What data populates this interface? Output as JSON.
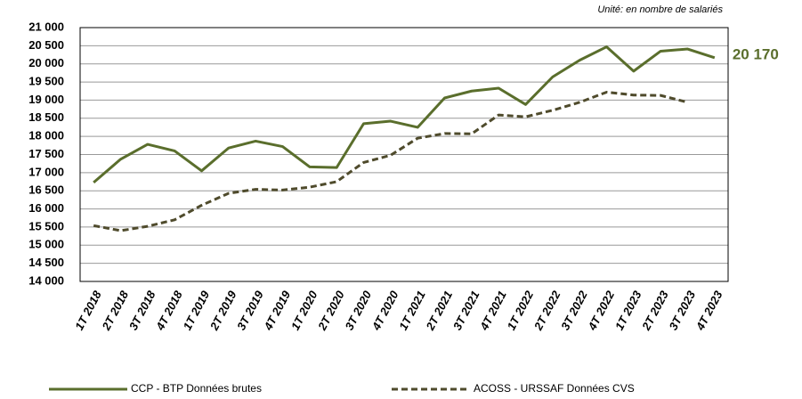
{
  "chart_data": {
    "type": "line",
    "note": "Unité: en nombre de salariés",
    "categories": [
      "1T 2018",
      "2T 2018",
      "3T 2018",
      "4T 2018",
      "1T 2019",
      "2T 2019",
      "3T 2019",
      "4T 2019",
      "1T 2020",
      "2T 2020",
      "3T 2020",
      "4T 2020",
      "1T 2021",
      "2T 2021",
      "3T 2021",
      "4T 2021",
      "1T 2022",
      "2T 2022",
      "3T 2022",
      "4T 2022",
      "1T 2023",
      "2T 2023",
      "3T 2023",
      "4T 2023"
    ],
    "series": [
      {
        "name": "CCP - BTP Données brutes",
        "color": "#5a6e2c",
        "dash": false,
        "values": [
          16730,
          17370,
          17780,
          17600,
          17050,
          17680,
          17870,
          17720,
          17160,
          17140,
          18350,
          18420,
          18250,
          19060,
          19250,
          19330,
          18880,
          19640,
          20100,
          20470,
          19800,
          20350,
          20410,
          20170
        ],
        "value_labels": [
          null,
          null,
          null,
          null,
          null,
          null,
          null,
          null,
          null,
          null,
          null,
          null,
          null,
          null,
          null,
          null,
          null,
          null,
          null,
          null,
          null,
          null,
          null,
          "20 170"
        ]
      },
      {
        "name": "ACOSS - URSSAF Données CVS",
        "color": "#4f4b2c",
        "dash": true,
        "values": [
          15540,
          15400,
          15520,
          15700,
          16100,
          16430,
          16540,
          16520,
          16600,
          16750,
          17280,
          17480,
          17950,
          18080,
          18070,
          18590,
          18540,
          18720,
          18940,
          19220,
          19140,
          19130,
          18940,
          null
        ]
      }
    ],
    "ylim": [
      14000,
      21000
    ],
    "yticks": [
      {
        "value": 14000,
        "label": "14 000"
      },
      {
        "value": 14500,
        "label": "14 500"
      },
      {
        "value": 15000,
        "label": "15 000"
      },
      {
        "value": 15500,
        "label": "15 500"
      },
      {
        "value": 16000,
        "label": "16 000"
      },
      {
        "value": 16500,
        "label": "16 500"
      },
      {
        "value": 17000,
        "label": "17 000"
      },
      {
        "value": 17500,
        "label": "17 500"
      },
      {
        "value": 18000,
        "label": "18 000"
      },
      {
        "value": 18500,
        "label": "18 500"
      },
      {
        "value": 19000,
        "label": "19 000"
      },
      {
        "value": 19500,
        "label": "19 500"
      },
      {
        "value": 20000,
        "label": "20 000"
      },
      {
        "value": 20500,
        "label": "20 500"
      },
      {
        "value": 21000,
        "label": "21 000"
      }
    ],
    "grid": true,
    "legend": "bottom"
  }
}
